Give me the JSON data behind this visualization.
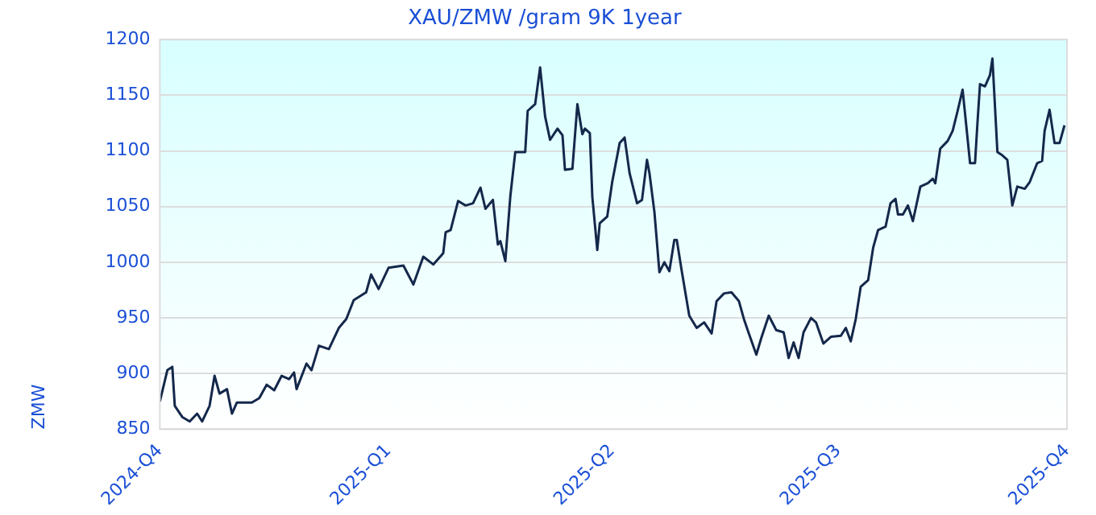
{
  "chart_data": {
    "type": "line",
    "title": "XAU/ZMW /gram 9K 1year",
    "ylabel": "ZMW",
    "xlim": [
      "2024-10-01",
      "2025-10-01"
    ],
    "xticks": [
      {
        "value": "2024-10-01",
        "label": "2024-Q4"
      },
      {
        "value": "2025-01-01",
        "label": "2025-Q1"
      },
      {
        "value": "2025-04-01",
        "label": "2025-Q2"
      },
      {
        "value": "2025-07-01",
        "label": "2025-Q3"
      },
      {
        "value": "2025-10-01",
        "label": "2025-Q4"
      }
    ],
    "ylim": [
      850,
      1200
    ],
    "yticks": [
      850,
      900,
      950,
      1000,
      1050,
      1100,
      1150,
      1200
    ],
    "grid": "y",
    "marker": "none",
    "line_style": "solid",
    "series": [
      {
        "color": "#14284b",
        "x": [
          "2024-10-01",
          "2024-10-04",
          "2024-10-06",
          "2024-10-07",
          "2024-10-10",
          "2024-10-13",
          "2024-10-16",
          "2024-10-18",
          "2024-10-21",
          "2024-10-23",
          "2024-10-25",
          "2024-10-28",
          "2024-10-30",
          "2024-11-01",
          "2024-11-07",
          "2024-11-10",
          "2024-11-13",
          "2024-11-16",
          "2024-11-19",
          "2024-11-22",
          "2024-11-24",
          "2024-11-25",
          "2024-11-29",
          "2024-12-01",
          "2024-12-04",
          "2024-12-08",
          "2024-12-12",
          "2024-12-15",
          "2024-12-18",
          "2024-12-23",
          "2024-12-25",
          "2024-12-28",
          "2025-01-01",
          "2025-01-07",
          "2025-01-11",
          "2025-01-15",
          "2025-01-19",
          "2025-01-23",
          "2025-01-24",
          "2025-01-26",
          "2025-01-29",
          "2025-02-01",
          "2025-02-04",
          "2025-02-07",
          "2025-02-09",
          "2025-02-12",
          "2025-02-14",
          "2025-02-15",
          "2025-02-17",
          "2025-02-19",
          "2025-02-21",
          "2025-02-25",
          "2025-02-26",
          "2025-03-01",
          "2025-03-03",
          "2025-03-05",
          "2025-03-07",
          "2025-03-10",
          "2025-03-12",
          "2025-03-13",
          "2025-03-16",
          "2025-03-18",
          "2025-03-20",
          "2025-03-21",
          "2025-03-23",
          "2025-03-24",
          "2025-03-26",
          "2025-03-27",
          "2025-03-30",
          "2025-04-01",
          "2025-04-04",
          "2025-04-06",
          "2025-04-08",
          "2025-04-11",
          "2025-04-13",
          "2025-04-15",
          "2025-04-16",
          "2025-04-18",
          "2025-04-20",
          "2025-04-22",
          "2025-04-24",
          "2025-04-26",
          "2025-04-27",
          "2025-04-29",
          "2025-05-02",
          "2025-05-05",
          "2025-05-08",
          "2025-05-11",
          "2025-05-13",
          "2025-05-16",
          "2025-05-19",
          "2025-05-22",
          "2025-05-24",
          "2025-05-26",
          "2025-05-29",
          "2025-05-31",
          "2025-06-03",
          "2025-06-06",
          "2025-06-09",
          "2025-06-11",
          "2025-06-13",
          "2025-06-15",
          "2025-06-17",
          "2025-06-20",
          "2025-06-22",
          "2025-06-25",
          "2025-06-28",
          "2025-07-02",
          "2025-07-04",
          "2025-07-06",
          "2025-07-08",
          "2025-07-10",
          "2025-07-13",
          "2025-07-15",
          "2025-07-17",
          "2025-07-20",
          "2025-07-22",
          "2025-07-24",
          "2025-07-25",
          "2025-07-27",
          "2025-07-29",
          "2025-07-31",
          "2025-08-03",
          "2025-08-06",
          "2025-08-08",
          "2025-08-09",
          "2025-08-11",
          "2025-08-14",
          "2025-08-16",
          "2025-08-18",
          "2025-08-20",
          "2025-08-23",
          "2025-08-25",
          "2025-08-26",
          "2025-08-27",
          "2025-08-29",
          "2025-08-31",
          "2025-09-01",
          "2025-09-03",
          "2025-09-05",
          "2025-09-07",
          "2025-09-09",
          "2025-09-11",
          "2025-09-14",
          "2025-09-16",
          "2025-09-19",
          "2025-09-21",
          "2025-09-22",
          "2025-09-24",
          "2025-09-26",
          "2025-09-28",
          "2025-09-30"
        ],
        "values": [
          875,
          903,
          906,
          871,
          861,
          857,
          864,
          857,
          871,
          898,
          882,
          886,
          864,
          874,
          874,
          878,
          890,
          885,
          898,
          895,
          901,
          886,
          909,
          903,
          925,
          922,
          941,
          949,
          966,
          973,
          989,
          976,
          995,
          997,
          980,
          1005,
          998,
          1008,
          1027,
          1029,
          1055,
          1051,
          1053,
          1067,
          1048,
          1056,
          1016,
          1019,
          1001,
          1059,
          1099,
          1099,
          1136,
          1142,
          1175,
          1131,
          1110,
          1120,
          1114,
          1083,
          1084,
          1142,
          1115,
          1120,
          1116,
          1059,
          1011,
          1035,
          1041,
          1072,
          1107,
          1112,
          1080,
          1053,
          1056,
          1092,
          1080,
          1045,
          991,
          1000,
          992,
          1020,
          1020,
          992,
          952,
          941,
          946,
          936,
          965,
          972,
          973,
          965,
          949,
          936,
          917,
          932,
          952,
          939,
          937,
          914,
          928,
          914,
          937,
          950,
          946,
          927,
          933,
          934,
          941,
          929,
          949,
          978,
          984,
          1013,
          1029,
          1032,
          1053,
          1057,
          1043,
          1043,
          1051,
          1037,
          1068,
          1071,
          1075,
          1071,
          1102,
          1109,
          1118,
          1136,
          1155,
          1089,
          1089,
          1126,
          1160,
          1158,
          1168,
          1183,
          1099,
          1096,
          1092,
          1051,
          1068,
          1066,
          1072,
          1089,
          1091,
          1118,
          1137,
          1107,
          1107,
          1123
        ]
      }
    ]
  }
}
